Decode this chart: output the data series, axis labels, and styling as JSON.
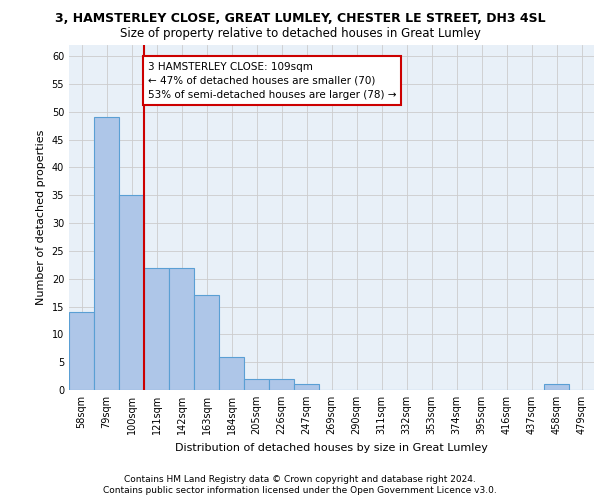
{
  "title_line1": "3, HAMSTERLEY CLOSE, GREAT LUMLEY, CHESTER LE STREET, DH3 4SL",
  "title_line2": "Size of property relative to detached houses in Great Lumley",
  "xlabel": "Distribution of detached houses by size in Great Lumley",
  "ylabel": "Number of detached properties",
  "categories": [
    "58sqm",
    "79sqm",
    "100sqm",
    "121sqm",
    "142sqm",
    "163sqm",
    "184sqm",
    "205sqm",
    "226sqm",
    "247sqm",
    "269sqm",
    "290sqm",
    "311sqm",
    "332sqm",
    "353sqm",
    "374sqm",
    "395sqm",
    "416sqm",
    "437sqm",
    "458sqm",
    "479sqm"
  ],
  "values": [
    14,
    49,
    35,
    22,
    22,
    17,
    6,
    2,
    2,
    1,
    0,
    0,
    0,
    0,
    0,
    0,
    0,
    0,
    0,
    1,
    0
  ],
  "bar_color": "#aec6e8",
  "bar_edge_color": "#5a9fd4",
  "vline_x": 2.5,
  "vline_color": "#cc0000",
  "annotation_text": "3 HAMSTERLEY CLOSE: 109sqm\n← 47% of detached houses are smaller (70)\n53% of semi-detached houses are larger (78) →",
  "annotation_box_color": "#ffffff",
  "annotation_box_edge_color": "#cc0000",
  "ylim": [
    0,
    62
  ],
  "yticks": [
    0,
    5,
    10,
    15,
    20,
    25,
    30,
    35,
    40,
    45,
    50,
    55,
    60
  ],
  "grid_color": "#cccccc",
  "bg_color": "#e8f0f8",
  "footer_line1": "Contains HM Land Registry data © Crown copyright and database right 2024.",
  "footer_line2": "Contains public sector information licensed under the Open Government Licence v3.0.",
  "title_fontsize": 9,
  "subtitle_fontsize": 8.5,
  "label_fontsize": 8,
  "tick_fontsize": 7,
  "footer_fontsize": 6.5,
  "annotation_fontsize": 7.5
}
